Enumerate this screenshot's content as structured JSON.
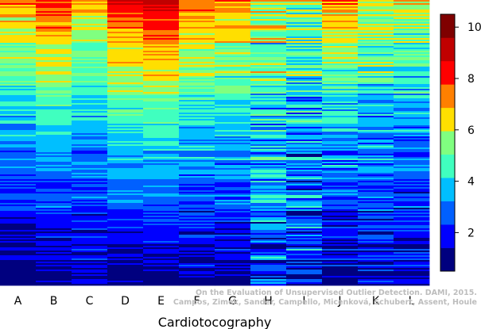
{
  "chart_data": {
    "type": "heatmap",
    "xlabel": "Cardiotocography",
    "columns": [
      "A",
      "B",
      "C",
      "D",
      "E",
      "F",
      "G",
      "H",
      "I",
      "J",
      "K",
      "L"
    ],
    "colorbar": {
      "min": 0.5,
      "max": 10.5,
      "ticks": [
        "2",
        "4",
        "6",
        "8",
        "10"
      ],
      "tick_values": [
        2,
        4,
        6,
        8,
        10
      ],
      "colors": [
        "#00007f",
        "#0000ff",
        "#0060ff",
        "#00bfff",
        "#40ffbf",
        "#80ff80",
        "#ffdf00",
        "#ff8000",
        "#ff0000",
        "#c00000",
        "#7f0000"
      ]
    },
    "rows": 180,
    "column_profiles": [
      {
        "name": "A",
        "start": 7.4,
        "end": 0.6,
        "spread": 1.0
      },
      {
        "name": "B",
        "start": 8.2,
        "end": 0.6,
        "spread": 1.0
      },
      {
        "name": "C",
        "start": 6.8,
        "end": 1.0,
        "spread": 1.1
      },
      {
        "name": "D",
        "start": 8.6,
        "end": 0.8,
        "spread": 0.9
      },
      {
        "name": "E",
        "start": 9.2,
        "end": 0.8,
        "spread": 0.9
      },
      {
        "name": "F",
        "start": 7.6,
        "end": 1.0,
        "spread": 1.1
      },
      {
        "name": "G",
        "start": 7.4,
        "end": 1.0,
        "spread": 1.1
      },
      {
        "name": "H",
        "start": 6.2,
        "end": 2.2,
        "spread": 2.2
      },
      {
        "name": "I",
        "start": 5.6,
        "end": 1.8,
        "spread": 2.4
      },
      {
        "name": "J",
        "start": 7.4,
        "end": 0.8,
        "spread": 1.4
      },
      {
        "name": "K",
        "start": 6.4,
        "end": 1.2,
        "spread": 1.6
      },
      {
        "name": "L",
        "start": 6.2,
        "end": 1.2,
        "spread": 1.4
      }
    ]
  },
  "watermark": {
    "line1": "On the Evaluation of Unsupervised Outlier Detection. DAMI, 2015.",
    "line2": "Campos, Zimek, Sander, Campello, Micenková, Schubert, Assent, Houle"
  }
}
